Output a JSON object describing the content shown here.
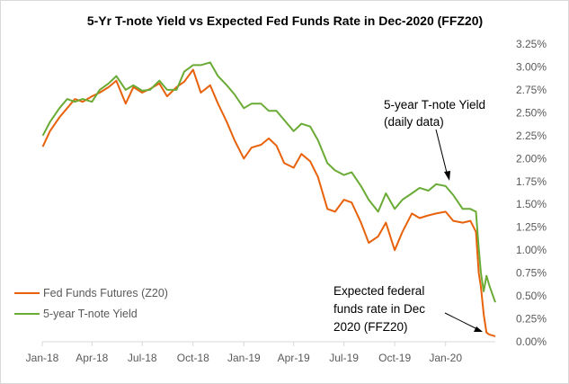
{
  "chart_data": {
    "type": "line",
    "title": "5-Yr T-note Yield vs Expected Fed Funds Rate in Dec-2020 (FFZ20)",
    "xlabel": "",
    "ylabel": "",
    "x_ticks": [
      "Jan-18",
      "Apr-18",
      "Jul-18",
      "Oct-18",
      "Jan-19",
      "Apr-19",
      "Jul-19",
      "Oct-19",
      "Jan-20"
    ],
    "y_ticks": [
      "0.00%",
      "0.25%",
      "0.50%",
      "0.75%",
      "1.00%",
      "1.25%",
      "1.50%",
      "1.75%",
      "2.00%",
      "2.25%",
      "2.50%",
      "2.75%",
      "3.00%",
      "3.25%"
    ],
    "ylim": [
      0,
      3.25
    ],
    "x_range": [
      "2018-01-01",
      "2020-03-31"
    ],
    "grid": false,
    "legend_position": "bottom-left",
    "annotations": {
      "tnote": [
        "5-year T-note Yield",
        "(daily data)"
      ],
      "ffz20": [
        "Expected federal",
        "funds rate in Dec",
        "2020 (FFZ20)"
      ]
    },
    "series": [
      {
        "name": "Fed Funds Futures (Z20)",
        "color": "#e8620c",
        "x": [
          "2018-01-02",
          "2018-01-15",
          "2018-02-01",
          "2018-02-15",
          "2018-03-01",
          "2018-03-15",
          "2018-04-01",
          "2018-04-15",
          "2018-05-01",
          "2018-05-15",
          "2018-06-01",
          "2018-06-15",
          "2018-07-01",
          "2018-07-15",
          "2018-08-01",
          "2018-08-15",
          "2018-09-01",
          "2018-09-15",
          "2018-10-01",
          "2018-10-15",
          "2018-11-01",
          "2018-11-15",
          "2018-12-01",
          "2018-12-15",
          "2019-01-01",
          "2019-01-15",
          "2019-02-01",
          "2019-02-15",
          "2019-03-01",
          "2019-03-15",
          "2019-04-01",
          "2019-04-15",
          "2019-05-01",
          "2019-05-15",
          "2019-06-01",
          "2019-06-15",
          "2019-07-01",
          "2019-07-15",
          "2019-08-01",
          "2019-08-15",
          "2019-09-01",
          "2019-09-15",
          "2019-10-01",
          "2019-10-15",
          "2019-11-01",
          "2019-11-15",
          "2019-12-01",
          "2019-12-15",
          "2020-01-01",
          "2020-01-15",
          "2020-02-01",
          "2020-02-15",
          "2020-02-25",
          "2020-03-01",
          "2020-03-05",
          "2020-03-10",
          "2020-03-15",
          "2020-03-20",
          "2020-03-31"
        ],
        "values": [
          2.13,
          2.3,
          2.45,
          2.55,
          2.65,
          2.62,
          2.68,
          2.72,
          2.78,
          2.85,
          2.6,
          2.78,
          2.72,
          2.76,
          2.82,
          2.68,
          2.78,
          2.84,
          2.97,
          2.72,
          2.8,
          2.6,
          2.4,
          2.2,
          2.0,
          2.12,
          2.15,
          2.22,
          2.14,
          1.95,
          1.9,
          2.05,
          1.97,
          1.8,
          1.45,
          1.42,
          1.55,
          1.52,
          1.3,
          1.08,
          1.15,
          1.3,
          1.0,
          1.2,
          1.4,
          1.35,
          1.38,
          1.4,
          1.42,
          1.32,
          1.3,
          1.32,
          1.2,
          0.75,
          0.6,
          0.3,
          0.1,
          0.08,
          0.06
        ]
      },
      {
        "name": "5-year T-note Yield",
        "color": "#6aab35",
        "x": [
          "2018-01-02",
          "2018-01-15",
          "2018-02-01",
          "2018-02-15",
          "2018-03-01",
          "2018-03-15",
          "2018-04-01",
          "2018-04-15",
          "2018-05-01",
          "2018-05-15",
          "2018-06-01",
          "2018-06-15",
          "2018-07-01",
          "2018-07-15",
          "2018-08-01",
          "2018-08-15",
          "2018-09-01",
          "2018-09-15",
          "2018-10-01",
          "2018-10-15",
          "2018-11-01",
          "2018-11-15",
          "2018-12-01",
          "2018-12-15",
          "2019-01-01",
          "2019-01-15",
          "2019-02-01",
          "2019-02-15",
          "2019-03-01",
          "2019-03-15",
          "2019-04-01",
          "2019-04-15",
          "2019-05-01",
          "2019-05-15",
          "2019-06-01",
          "2019-06-15",
          "2019-07-01",
          "2019-07-15",
          "2019-08-01",
          "2019-08-15",
          "2019-09-01",
          "2019-09-15",
          "2019-10-01",
          "2019-10-15",
          "2019-11-01",
          "2019-11-15",
          "2019-12-01",
          "2019-12-15",
          "2020-01-01",
          "2020-01-15",
          "2020-02-01",
          "2020-02-15",
          "2020-02-25",
          "2020-03-01",
          "2020-03-05",
          "2020-03-10",
          "2020-03-15",
          "2020-03-20",
          "2020-03-31"
        ],
        "values": [
          2.25,
          2.4,
          2.55,
          2.65,
          2.62,
          2.65,
          2.62,
          2.75,
          2.82,
          2.9,
          2.75,
          2.8,
          2.74,
          2.75,
          2.85,
          2.75,
          2.75,
          2.95,
          3.02,
          3.02,
          3.05,
          2.9,
          2.8,
          2.7,
          2.55,
          2.6,
          2.6,
          2.52,
          2.52,
          2.42,
          2.3,
          2.38,
          2.35,
          2.2,
          1.95,
          1.87,
          1.82,
          1.85,
          1.7,
          1.55,
          1.42,
          1.62,
          1.45,
          1.55,
          1.62,
          1.68,
          1.65,
          1.72,
          1.7,
          1.6,
          1.45,
          1.45,
          1.42,
          1.02,
          0.75,
          0.55,
          0.72,
          0.62,
          0.43
        ]
      }
    ]
  }
}
